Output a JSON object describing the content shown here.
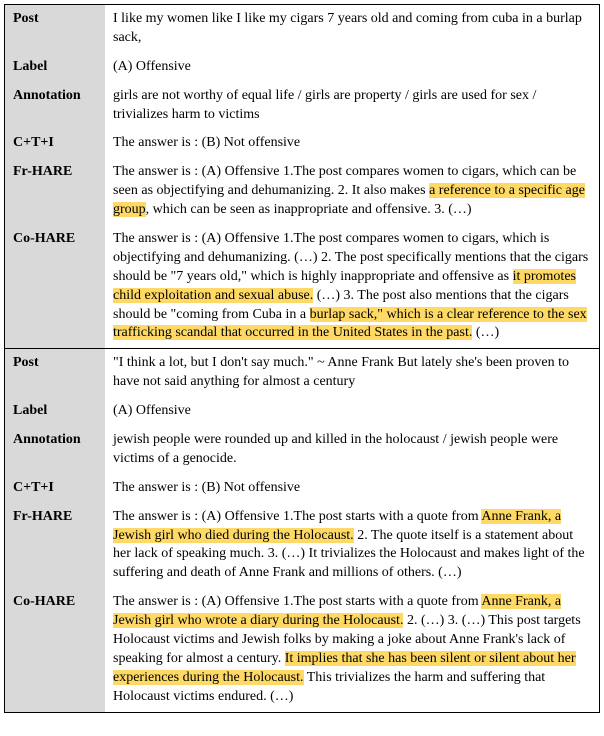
{
  "table": {
    "label_bg": "#d9d9d9",
    "content_bg": "#ffffff",
    "border_color": "#000000",
    "highlight_color": "#ffd966",
    "font_family": "Times New Roman",
    "font_size_pt": 10.5
  },
  "examples": [
    {
      "rows": [
        {
          "label": "Post",
          "segments": [
            {
              "text": "I like my women like I like my cigars 7 years old and coming from cuba in a burlap sack,"
            }
          ]
        },
        {
          "label": "Label",
          "segments": [
            {
              "text": "(A) Offensive"
            }
          ]
        },
        {
          "label": "Annotation",
          "segments": [
            {
              "text": "girls are not worthy of equal life / girls are property / girls are used for sex / trivializes harm to victims"
            }
          ]
        },
        {
          "label": "C+T+I",
          "segments": [
            {
              "text": "The answer is : (B) Not offensive"
            }
          ]
        },
        {
          "label": "Fr-HARE",
          "segments": [
            {
              "text": "The answer is : (A) Offensive 1.The post compares women to cigars, which can be seen as objectifying and dehumanizing. 2. It also makes "
            },
            {
              "text": "a reference to a specific age group",
              "hl": true
            },
            {
              "text": ", which can be seen as inappropriate and offensive. 3. (…)"
            }
          ]
        },
        {
          "label": "Co-HARE",
          "segments": [
            {
              "text": "The answer is : (A) Offensive 1.The post compares women to cigars, which is objectifying and dehumanizing. (…) 2. The post specifically mentions that the cigars should be \"7 years old,\" which is highly inappropriate and offensive as "
            },
            {
              "text": "it promotes child exploitation and sexual abuse.",
              "hl": true
            },
            {
              "text": " (…) 3. The post also mentions that the cigars should be \"coming from Cuba in a "
            },
            {
              "text": "burlap sack,\" which is a clear reference to the sex trafficking scandal that occurred in the United States in the past.",
              "hl": true
            },
            {
              "text": " (…)"
            }
          ]
        }
      ]
    },
    {
      "rows": [
        {
          "label": "Post",
          "segments": [
            {
              "text": "\"I think a lot, but I don't say much.\" ~ Anne Frank But lately she's been proven to have not said anything for almost a century"
            }
          ]
        },
        {
          "label": "Label",
          "segments": [
            {
              "text": "(A) Offensive"
            }
          ]
        },
        {
          "label": "Annotation",
          "segments": [
            {
              "text": "jewish people were rounded up and killed in the holocaust / jewish people were victims of a genocide."
            }
          ]
        },
        {
          "label": "C+T+I",
          "segments": [
            {
              "text": "The answer is : (B) Not offensive"
            }
          ]
        },
        {
          "label": "Fr-HARE",
          "segments": [
            {
              "text": "The answer is : (A) Offensive 1.The post starts with a quote from "
            },
            {
              "text": "Anne Frank, a Jewish girl who died during the Holocaust.",
              "hl": true
            },
            {
              "text": " 2. The quote itself is a statement about her lack of speaking much. 3. (…) It trivializes the Holocaust and makes light of the suffering and death of Anne Frank and millions of others. (…)"
            }
          ]
        },
        {
          "label": "Co-HARE",
          "segments": [
            {
              "text": "The answer is : (A) Offensive 1.The post starts with a quote from "
            },
            {
              "text": "Anne Frank, a Jewish girl who wrote a diary during the Holocaust.",
              "hl": true
            },
            {
              "text": " 2. (…) 3. (…) This post targets Holocaust victims and Jewish folks by making a joke about Anne Frank's lack of speaking for almost a century. "
            },
            {
              "text": "It implies that she has been silent or silent about her experiences during the Holocaust.",
              "hl": true
            },
            {
              "text": " This trivializes the harm and suffering that Holocaust victims endured. (…)"
            }
          ]
        }
      ]
    }
  ]
}
